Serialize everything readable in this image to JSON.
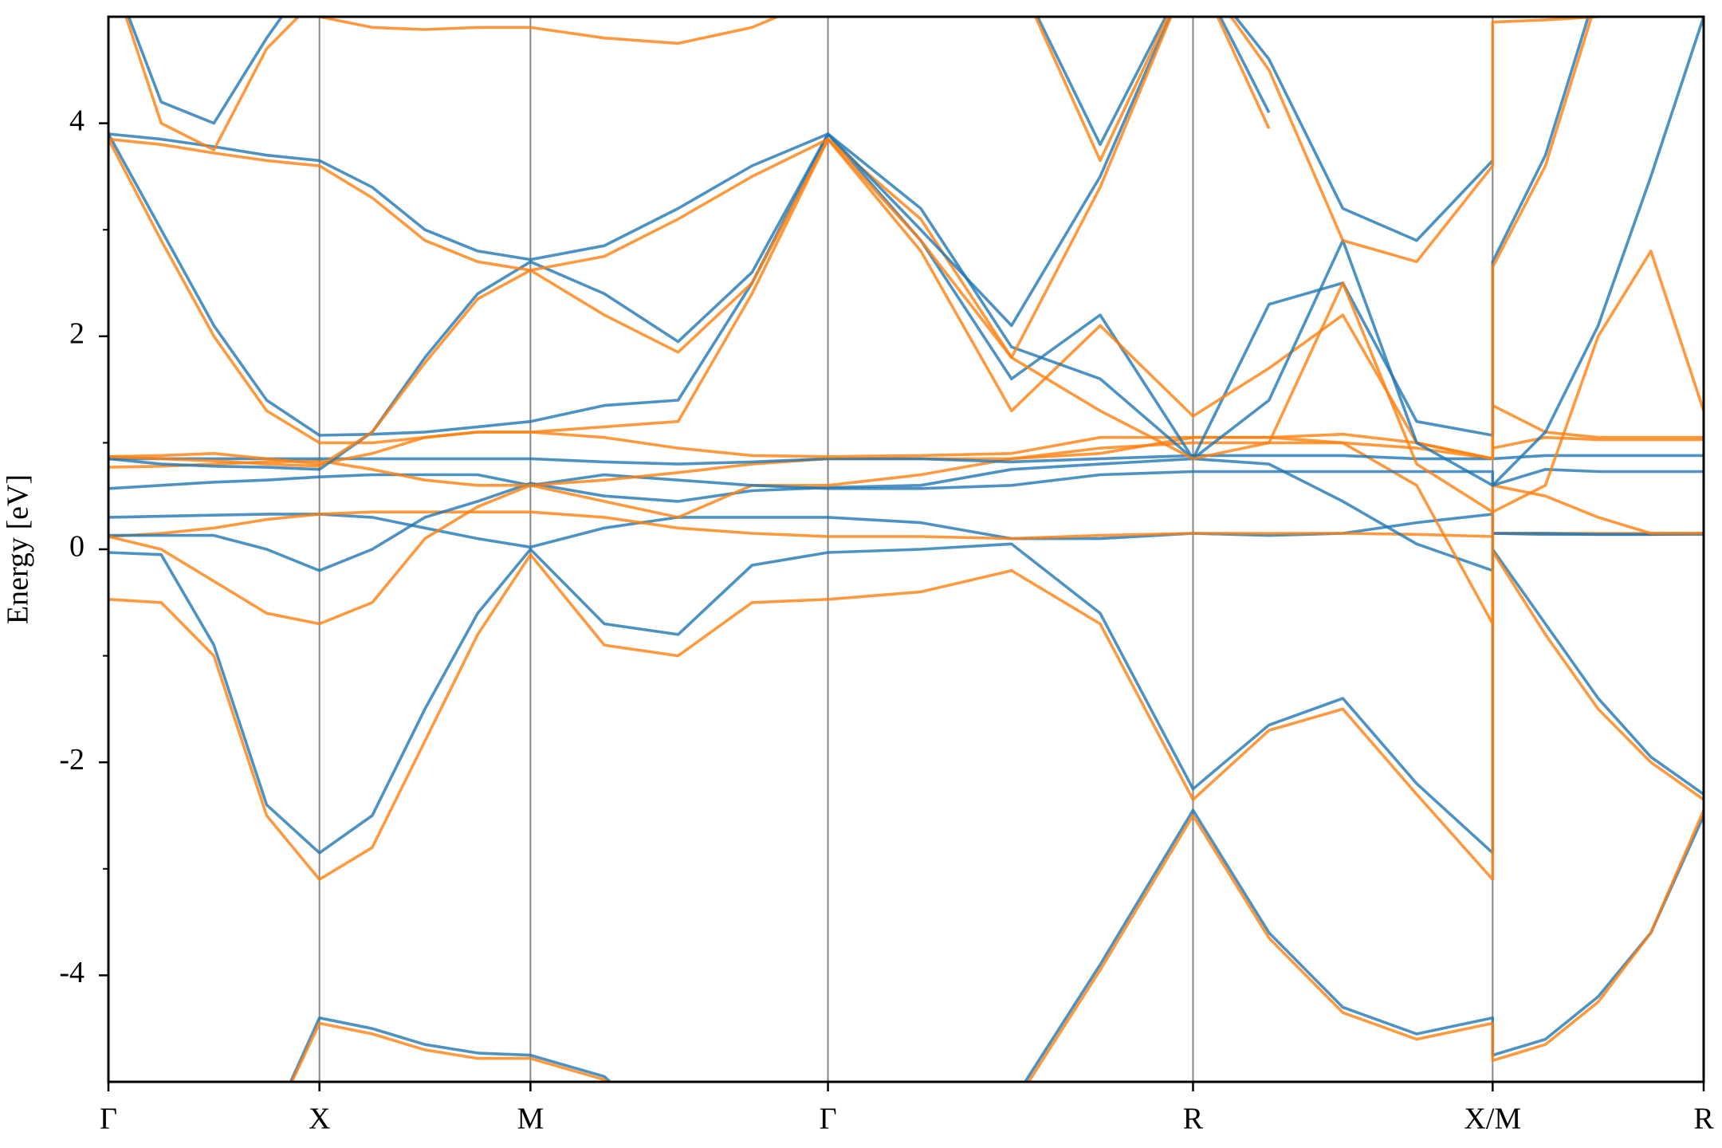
{
  "chart_data": {
    "type": "line",
    "ylabel": "Energy [eV]",
    "x": [
      0,
      0.25,
      0.5,
      0.75,
      1,
      1.25,
      1.5,
      1.75,
      2,
      2.35,
      2.7,
      3.05,
      3.41,
      3.85,
      4.28,
      4.7,
      5.14,
      5.5,
      5.85,
      6.2,
      6.56,
      6.56,
      6.81,
      7.06,
      7.31,
      7.56
    ],
    "xlim": [
      0,
      7.56
    ],
    "xticks": [
      {
        "value": 0,
        "label": "Γ"
      },
      {
        "value": 1,
        "label": "X"
      },
      {
        "value": 2,
        "label": "M"
      },
      {
        "value": 3.41,
        "label": "Γ"
      },
      {
        "value": 5.14,
        "label": "R"
      },
      {
        "value": 6.56,
        "label": "X/M"
      },
      {
        "value": 7.56,
        "label": "R"
      }
    ],
    "xgrid": true,
    "ylim": [
      -5,
      5
    ],
    "yticks": [
      -4,
      -2,
      0,
      2,
      4
    ],
    "yminorticks": [
      -3,
      -1,
      1,
      3
    ],
    "series": [
      {
        "color": "#1f77b4",
        "values": [
          null,
          null,
          null,
          -5.5,
          -4.4,
          -4.5,
          -4.65,
          -4.73,
          -4.75,
          -4.95,
          -5.6,
          null,
          null,
          null,
          -5.2,
          -3.9,
          -2.45,
          -3.6,
          -4.3,
          -4.55,
          -4.4,
          -4.75,
          -4.6,
          -4.2,
          -3.6,
          -2.5
        ]
      },
      {
        "color": "#ff7f0e",
        "values": [
          null,
          null,
          null,
          -5.5,
          -4.45,
          -4.55,
          -4.7,
          -4.78,
          -4.78,
          -4.98,
          -5.6,
          null,
          null,
          null,
          -5.25,
          -3.95,
          -2.5,
          -3.65,
          -4.35,
          -4.6,
          -4.45,
          -4.8,
          -4.65,
          -4.25,
          -3.6,
          -2.45
        ]
      },
      {
        "color": "#1f77b4",
        "values": [
          -0.03,
          -0.05,
          -0.9,
          -2.4,
          -2.85,
          -2.5,
          -1.5,
          -0.6,
          0.0,
          -0.7,
          -0.8,
          -0.15,
          -0.03,
          0.0,
          0.05,
          -0.6,
          -2.25,
          -1.65,
          -1.4,
          -2.2,
          -2.85,
          0.0,
          -0.7,
          -1.4,
          -1.95,
          -2.3
        ]
      },
      {
        "color": "#ff7f0e",
        "values": [
          -0.47,
          -0.5,
          -1.0,
          -2.5,
          -3.1,
          -2.8,
          -1.8,
          -0.8,
          -0.05,
          -0.9,
          -1.0,
          -0.5,
          -0.47,
          -0.4,
          -0.2,
          -0.7,
          -2.35,
          -1.7,
          -1.5,
          -2.3,
          -3.1,
          -0.02,
          -0.8,
          -1.5,
          -2.0,
          -2.35
        ]
      },
      {
        "color": "#1f77b4",
        "values": [
          0.3,
          0.31,
          0.32,
          0.33,
          0.33,
          0.3,
          0.2,
          0.1,
          0.02,
          0.2,
          0.3,
          0.3,
          0.3,
          0.25,
          0.1,
          0.1,
          0.15,
          0.13,
          0.15,
          0.25,
          0.33,
          0.15,
          0.14,
          0.14,
          0.14,
          0.15
        ]
      },
      {
        "color": "#ff7f0e",
        "values": [
          0.12,
          0.15,
          0.2,
          0.28,
          0.33,
          0.35,
          0.35,
          0.35,
          0.35,
          0.3,
          0.2,
          0.15,
          0.12,
          0.12,
          0.1,
          0.13,
          0.15,
          0.15,
          0.15,
          0.14,
          0.12,
          0.15,
          0.15,
          0.15,
          0.15,
          0.15
        ]
      },
      {
        "color": "#1f77b4",
        "values": [
          0.13,
          0.13,
          0.13,
          0.0,
          -0.2,
          0.0,
          0.3,
          0.45,
          0.62,
          0.5,
          0.45,
          0.55,
          0.58,
          0.6,
          0.75,
          0.8,
          0.85,
          0.8,
          0.45,
          0.05,
          -0.2,
          0.15,
          0.15,
          0.14,
          0.14,
          0.14
        ]
      },
      {
        "color": "#ff7f0e",
        "values": [
          0.12,
          0.0,
          -0.3,
          -0.6,
          -0.7,
          -0.5,
          0.1,
          0.4,
          0.6,
          0.45,
          0.3,
          0.6,
          0.6,
          0.7,
          0.85,
          0.9,
          1.05,
          1.05,
          1.0,
          0.6,
          -0.7,
          0.6,
          0.5,
          0.3,
          0.15,
          0.15
        ]
      },
      {
        "color": "#1f77b4",
        "values": [
          0.57,
          0.6,
          0.63,
          0.65,
          0.68,
          0.7,
          0.7,
          0.7,
          0.6,
          0.7,
          0.65,
          0.6,
          0.57,
          0.57,
          0.6,
          0.7,
          0.73,
          0.73,
          0.73,
          0.73,
          0.73,
          0.6,
          0.75,
          0.73,
          0.73,
          0.73
        ]
      },
      {
        "color": "#ff7f0e",
        "values": [
          0.77,
          0.78,
          0.8,
          0.82,
          0.83,
          0.75,
          0.65,
          0.6,
          0.6,
          0.65,
          0.72,
          0.8,
          0.85,
          0.85,
          0.85,
          0.95,
          1.0,
          1.0,
          1.0,
          0.95,
          0.85,
          0.95,
          1.05,
          1.03,
          1.03,
          1.03
        ]
      },
      {
        "color": "#1f77b4",
        "values": [
          0.85,
          0.85,
          0.85,
          0.85,
          0.85,
          0.85,
          0.85,
          0.85,
          0.85,
          0.82,
          0.8,
          0.82,
          0.85,
          0.85,
          0.82,
          0.85,
          0.88,
          0.88,
          0.88,
          0.85,
          0.85,
          0.85,
          0.88,
          0.88,
          0.88,
          0.88
        ]
      },
      {
        "color": "#ff7f0e",
        "values": [
          0.87,
          0.88,
          0.9,
          0.85,
          0.8,
          0.9,
          1.05,
          1.1,
          1.1,
          1.05,
          0.95,
          0.88,
          0.87,
          0.88,
          0.9,
          1.05,
          1.05,
          1.05,
          1.08,
          1.0,
          0.85,
          1.35,
          1.1,
          1.05,
          1.05,
          1.05
        ]
      },
      {
        "color": "#1f77b4",
        "values": [
          3.9,
          3.0,
          2.1,
          1.4,
          1.07,
          1.08,
          1.1,
          1.15,
          1.2,
          1.35,
          1.4,
          2.5,
          3.9,
          2.9,
          1.6,
          2.2,
          0.85,
          2.3,
          2.5,
          1.2,
          1.07,
          2.7,
          3.7,
          5.3,
          null,
          null
        ]
      },
      {
        "color": "#ff7f0e",
        "values": [
          3.85,
          2.9,
          2.0,
          1.3,
          1.0,
          1.0,
          1.05,
          1.1,
          1.1,
          1.15,
          1.2,
          2.4,
          3.85,
          2.8,
          1.3,
          2.1,
          1.25,
          1.7,
          2.2,
          1.0,
          0.85,
          2.65,
          3.6,
          5.2,
          null,
          null
        ]
      },
      {
        "color": "#1f77b4",
        "values": [
          0.85,
          0.8,
          0.78,
          0.77,
          0.75,
          1.1,
          1.8,
          2.4,
          2.7,
          2.4,
          1.95,
          2.6,
          3.9,
          3.2,
          1.9,
          1.6,
          0.85,
          1.4,
          2.9,
          1.0,
          0.6,
          0.6,
          1.1,
          2.1,
          3.5,
          5.0
        ]
      },
      {
        "color": "#ff7f0e",
        "values": [
          0.87,
          0.85,
          0.83,
          0.8,
          0.78,
          1.1,
          1.75,
          2.35,
          2.62,
          2.2,
          1.85,
          2.5,
          3.85,
          3.1,
          1.8,
          1.3,
          0.85,
          1.0,
          2.5,
          0.8,
          0.35,
          0.35,
          0.6,
          2.0,
          2.8,
          1.3
        ]
      },
      {
        "color": "#1f77b4",
        "values": [
          3.9,
          3.85,
          3.78,
          3.7,
          3.65,
          3.4,
          3.0,
          2.8,
          2.72,
          2.85,
          3.2,
          3.6,
          3.9,
          3.0,
          2.1,
          3.5,
          5.5,
          4.6,
          3.2,
          2.9,
          3.65,
          null,
          null,
          null,
          null,
          null
        ]
      },
      {
        "color": "#ff7f0e",
        "values": [
          3.85,
          3.8,
          3.72,
          3.65,
          3.6,
          3.3,
          2.9,
          2.7,
          2.62,
          2.75,
          3.1,
          3.5,
          3.85,
          2.9,
          1.8,
          3.4,
          5.5,
          4.5,
          2.9,
          2.7,
          3.6,
          4.95,
          4.97,
          5.0,
          5.1,
          null
        ]
      },
      {
        "color": "#1f77b4",
        "values": [
          5.5,
          4.2,
          4.0,
          4.8,
          5.5,
          null,
          null,
          null,
          null,
          null,
          null,
          null,
          null,
          null,
          5.5,
          3.8,
          5.5,
          4.1,
          null,
          null,
          null,
          null,
          null,
          null,
          null,
          null
        ]
      },
      {
        "color": "#ff7f0e",
        "values": [
          5.5,
          4.0,
          3.75,
          4.7,
          5.2,
          null,
          null,
          null,
          null,
          null,
          null,
          null,
          null,
          null,
          5.5,
          3.65,
          5.5,
          3.95,
          null,
          null,
          null,
          null,
          null,
          null,
          null,
          null
        ]
      },
      {
        "color": "#ff7f0e",
        "values": [
          null,
          null,
          null,
          null,
          5.0,
          4.9,
          4.88,
          4.9,
          4.9,
          4.8,
          4.75,
          4.9,
          5.2,
          null,
          null,
          null,
          null,
          null,
          null,
          null,
          null,
          null,
          null,
          null,
          null,
          null
        ]
      }
    ]
  }
}
